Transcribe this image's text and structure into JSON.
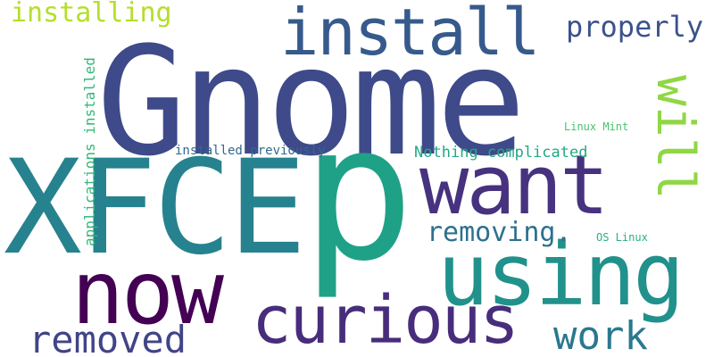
{
  "cloud": {
    "words": [
      {
        "text": "Gnome",
        "color": "#3e4a89"
      },
      {
        "text": "XFCE",
        "color": "#26828e"
      },
      {
        "text": "p",
        "color": "#1fa187"
      },
      {
        "text": "want",
        "color": "#46327e"
      },
      {
        "text": "now",
        "color": "#440154"
      },
      {
        "text": "using",
        "color": "#21918c"
      },
      {
        "text": "curious",
        "color": "#472d7b"
      },
      {
        "text": "install",
        "color": "#375a8c"
      },
      {
        "text": "will",
        "color": "#8fd744"
      },
      {
        "text": "installing",
        "color": "#b5de2b"
      },
      {
        "text": "properly",
        "color": "#3b528b"
      },
      {
        "text": "removed",
        "color": "#414487"
      },
      {
        "text": "work",
        "color": "#2a788e"
      },
      {
        "text": "removing.",
        "color": "#2d708e"
      },
      {
        "text": "Nothing complicated",
        "color": "#22a884"
      },
      {
        "text": "applications installed",
        "color": "#35b779"
      },
      {
        "text": "installed previously",
        "color": "#31688e"
      },
      {
        "text": "Linux Mint",
        "color": "#4ac16d"
      },
      {
        "text": "OS Linux",
        "color": "#29af7f"
      }
    ]
  }
}
